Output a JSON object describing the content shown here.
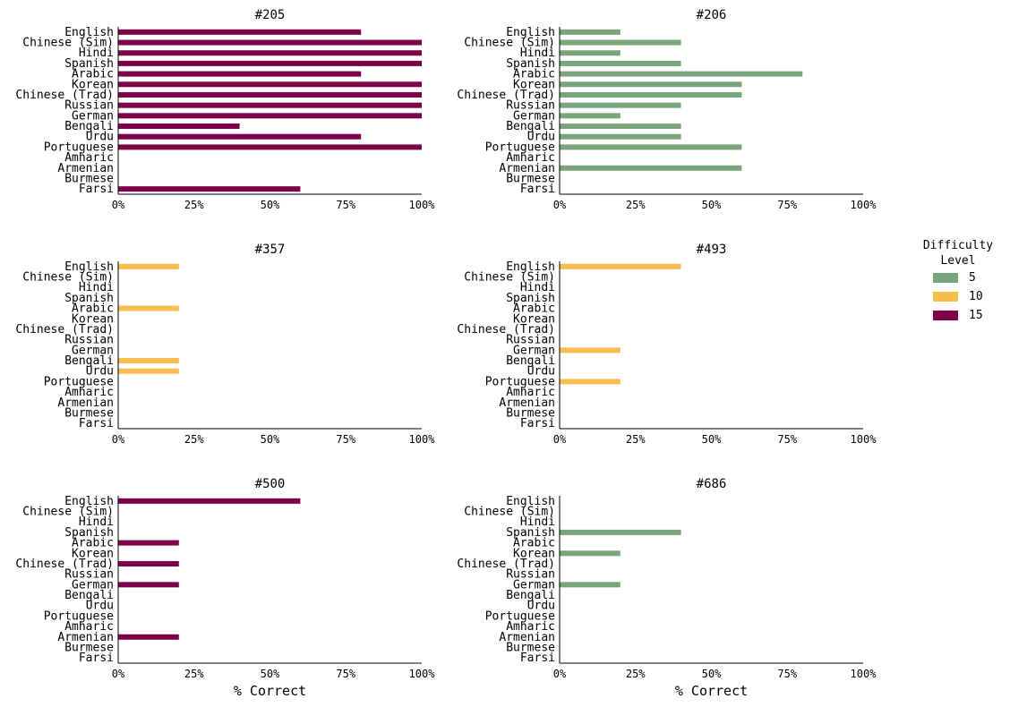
{
  "chart_data": {
    "type": "bar",
    "orientation": "horizontal",
    "categories": [
      "English",
      "Chinese (Sim)",
      "Hindi",
      "Spanish",
      "Arabic",
      "Korean",
      "Chinese (Trad)",
      "Russian",
      "German",
      "Bengali",
      "Urdu",
      "Portuguese",
      "Amharic",
      "Armenian",
      "Burmese",
      "Farsi"
    ],
    "xlim": [
      0,
      100
    ],
    "x_ticks": [
      "0%",
      "25%",
      "50%",
      "75%",
      "100%"
    ],
    "xlabel": "% Correct",
    "grid": false,
    "legend": {
      "title": "Difficulty\nLevel",
      "placement": "right",
      "entries": [
        {
          "label": "5",
          "color": "#78a57c"
        },
        {
          "label": "10",
          "color": "#f7bd4d"
        },
        {
          "label": "15",
          "color": "#7d0049"
        }
      ]
    },
    "panels": [
      {
        "title": "#205",
        "difficulty": "15",
        "color": "#7d0049",
        "values": [
          80,
          100,
          100,
          100,
          80,
          100,
          100,
          100,
          100,
          40,
          80,
          100,
          0,
          0,
          0,
          60
        ]
      },
      {
        "title": "#206",
        "difficulty": "5",
        "color": "#78a57c",
        "values": [
          20,
          40,
          20,
          40,
          80,
          60,
          60,
          40,
          20,
          40,
          40,
          60,
          0,
          60,
          0,
          0
        ]
      },
      {
        "title": "#357",
        "difficulty": "10",
        "color": "#f7bd4d",
        "values": [
          20,
          0,
          0,
          0,
          20,
          0,
          0,
          0,
          0,
          20,
          20,
          0,
          0,
          0,
          0,
          0
        ]
      },
      {
        "title": "#493",
        "difficulty": "10",
        "color": "#f7bd4d",
        "values": [
          40,
          0,
          0,
          0,
          0,
          0,
          0,
          0,
          20,
          0,
          0,
          20,
          0,
          0,
          0,
          0
        ]
      },
      {
        "title": "#500",
        "difficulty": "15",
        "color": "#7d0049",
        "values": [
          60,
          0,
          0,
          0,
          20,
          0,
          20,
          0,
          20,
          0,
          0,
          0,
          0,
          20,
          0,
          0
        ]
      },
      {
        "title": "#686",
        "difficulty": "5",
        "color": "#78a57c",
        "values": [
          0,
          0,
          0,
          40,
          0,
          20,
          0,
          0,
          20,
          0,
          0,
          0,
          0,
          0,
          0,
          0
        ]
      }
    ]
  }
}
